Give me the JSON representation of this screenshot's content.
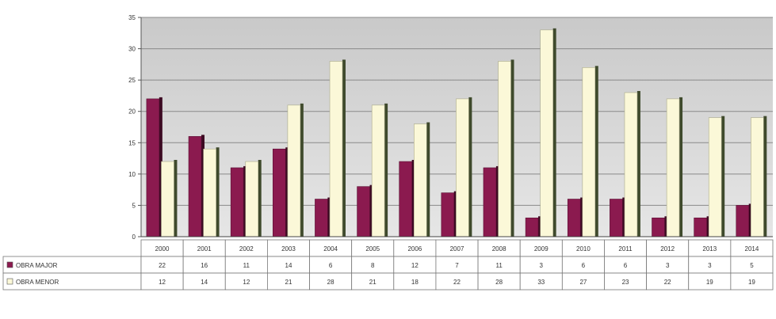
{
  "chart_data": {
    "type": "bar",
    "categories": [
      "2000",
      "2001",
      "2002",
      "2003",
      "2004",
      "2005",
      "2006",
      "2007",
      "2008",
      "2009",
      "2010",
      "2011",
      "2012",
      "2013",
      "2014"
    ],
    "series": [
      {
        "name": "OBRA MAJOR",
        "values": [
          22,
          16,
          11,
          14,
          6,
          8,
          12,
          7,
          11,
          3,
          6,
          6,
          3,
          3,
          5
        ],
        "color": "#8b1a4f"
      },
      {
        "name": "OBRA MENOR",
        "values": [
          12,
          14,
          12,
          21,
          28,
          21,
          18,
          22,
          28,
          33,
          27,
          23,
          22,
          19,
          19
        ],
        "color": "#fbf8d8"
      }
    ],
    "ylim": [
      0,
      35
    ],
    "yticks": [
      0,
      5,
      10,
      15,
      20,
      25,
      30,
      35
    ],
    "grid": true,
    "legend": "data-table"
  }
}
